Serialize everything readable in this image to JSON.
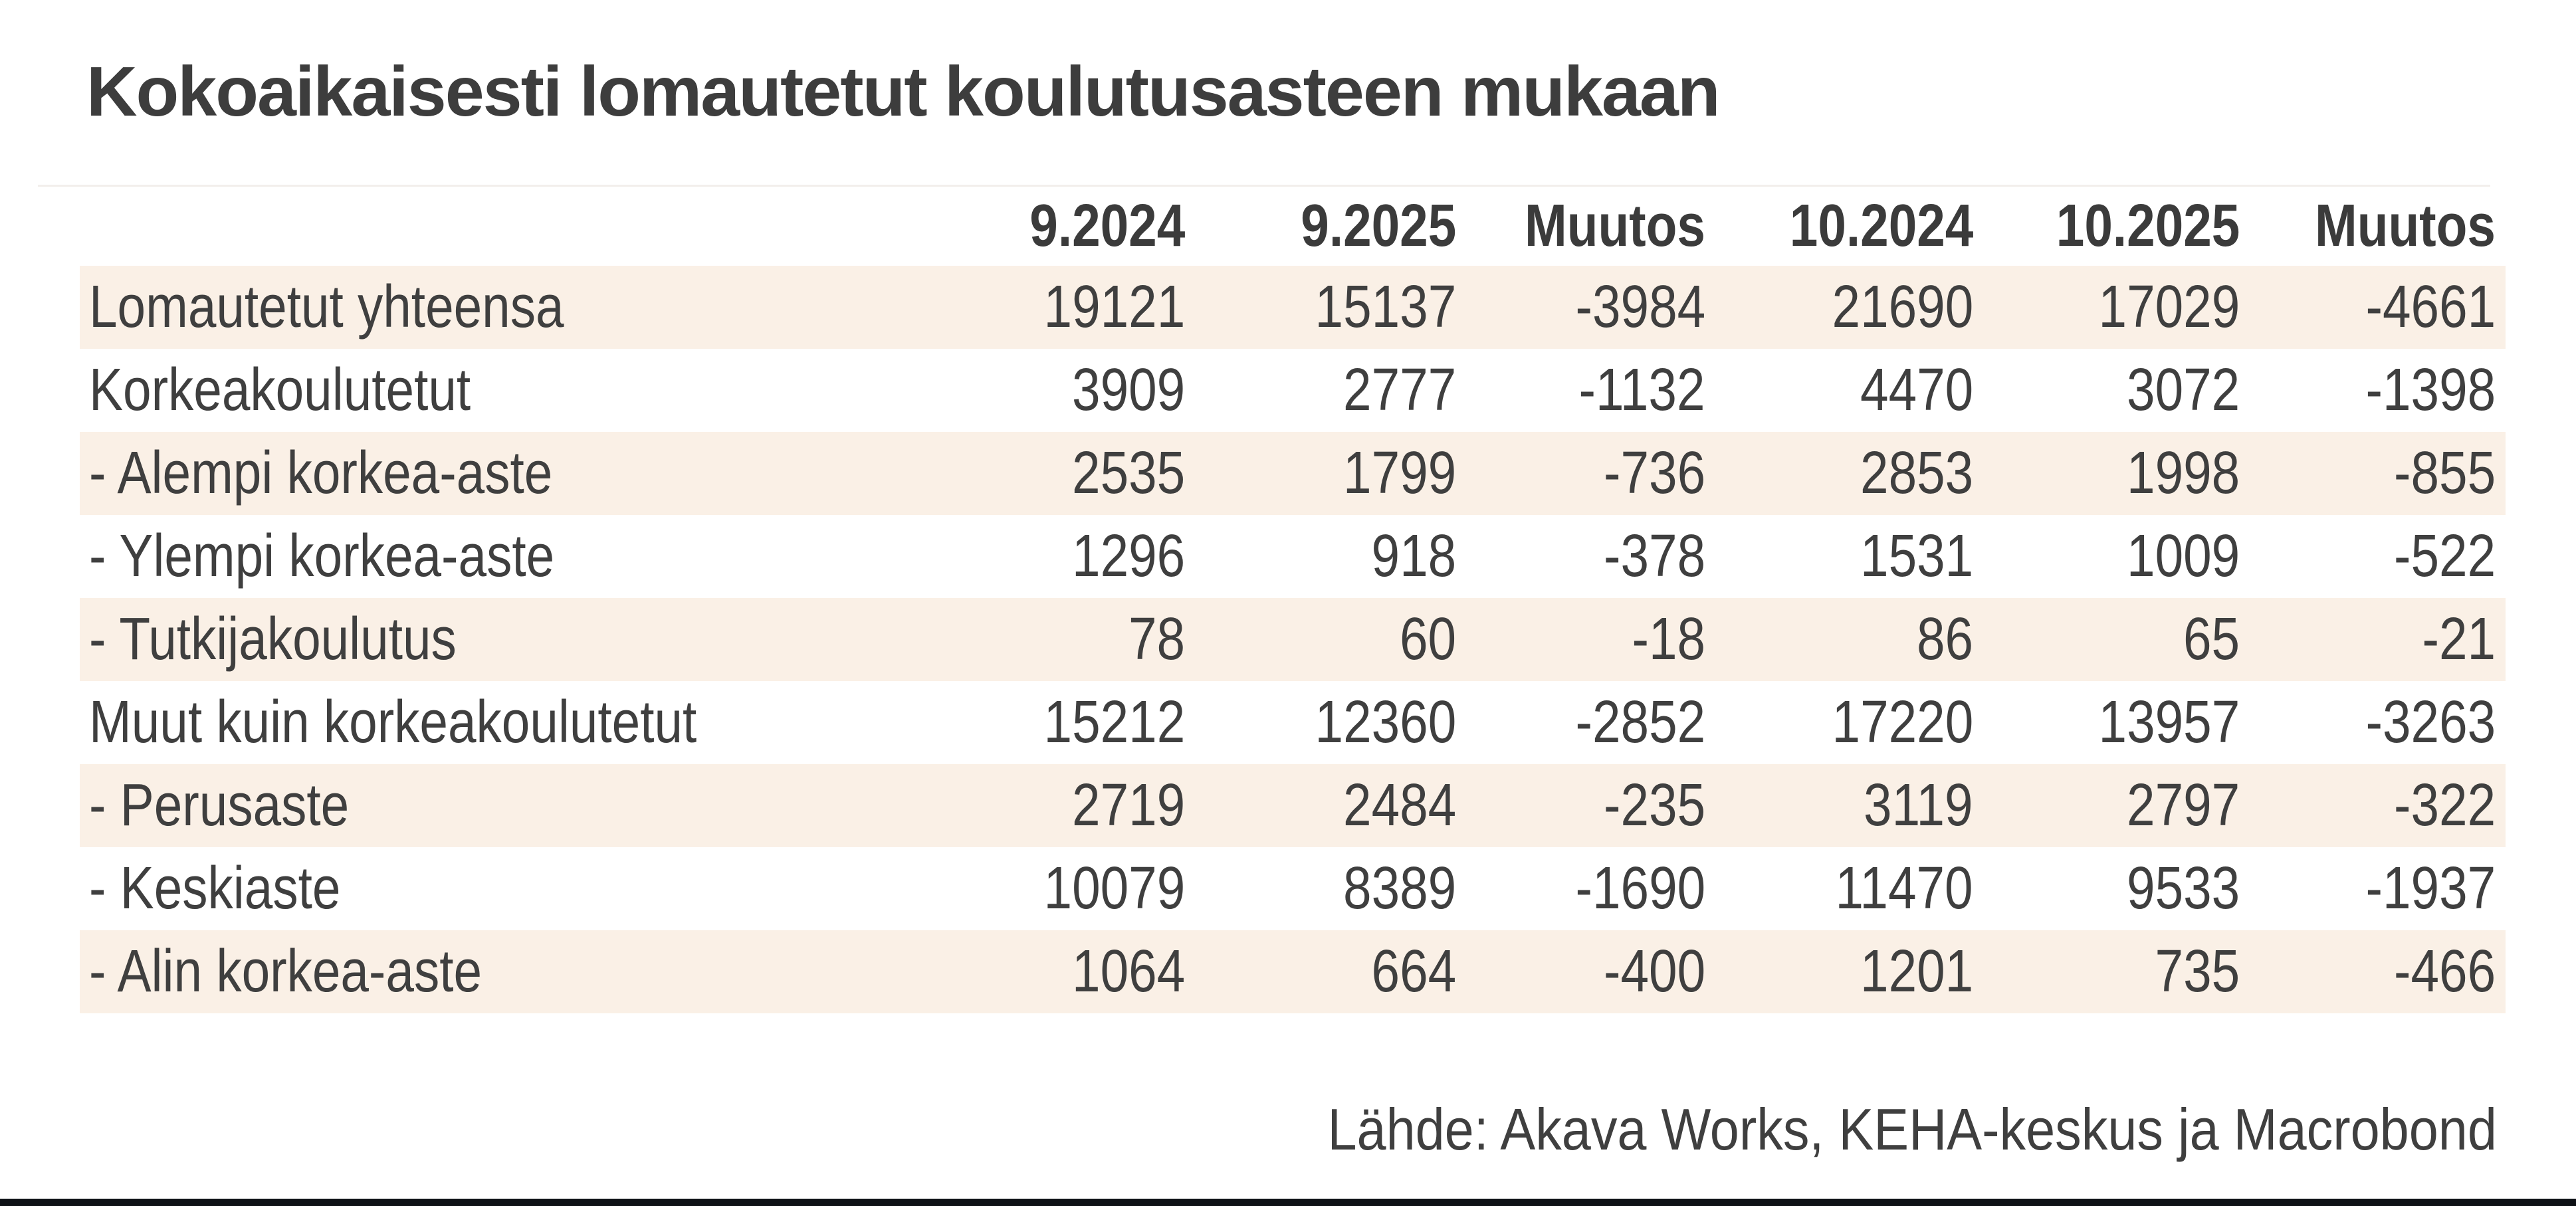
{
  "title": "Kokoaikaisesti lomautetut koulutusasteen mukaan",
  "source": "Lähde: Akava Works, KEHA-keskus ja Macrobond",
  "colors": {
    "background": "#ffffff",
    "row_band": "#faf0e6",
    "text": "#3f3f3f",
    "bottom_bar": "#0e1116"
  },
  "chart_data": {
    "type": "table",
    "title": "Kokoaikaisesti lomautetut koulutusasteen mukaan",
    "columns": [
      "9.2024",
      "9.2025",
      "Muutos",
      "10.2024",
      "10.2025",
      "Muutos"
    ],
    "rows": [
      {
        "label": "Lomautetut yhteensa",
        "values": [
          19121,
          15137,
          -3984,
          21690,
          17029,
          -4661
        ]
      },
      {
        "label": "Korkeakoulutetut",
        "values": [
          3909,
          2777,
          -1132,
          4470,
          3072,
          -1398
        ]
      },
      {
        "label": "- Alempi korkea-aste",
        "values": [
          2535,
          1799,
          -736,
          2853,
          1998,
          -855
        ]
      },
      {
        "label": "- Ylempi korkea-aste",
        "values": [
          1296,
          918,
          -378,
          1531,
          1009,
          -522
        ]
      },
      {
        "label": "- Tutkijakoulutus",
        "values": [
          78,
          60,
          -18,
          86,
          65,
          -21
        ]
      },
      {
        "label": "Muut kuin korkeakoulutetut",
        "values": [
          15212,
          12360,
          -2852,
          17220,
          13957,
          -3263
        ]
      },
      {
        "label": "- Perusaste",
        "values": [
          2719,
          2484,
          -235,
          3119,
          2797,
          -322
        ]
      },
      {
        "label": "- Keskiaste",
        "values": [
          10079,
          8389,
          -1690,
          11470,
          9533,
          -1937
        ]
      },
      {
        "label": "- Alin korkea-aste",
        "values": [
          1064,
          664,
          -400,
          1201,
          735,
          -466
        ]
      }
    ],
    "layout": {
      "banded_rows": true,
      "band_start": "first-data-row",
      "numeric_alignment": "right",
      "source_position": "bottom-right"
    }
  }
}
